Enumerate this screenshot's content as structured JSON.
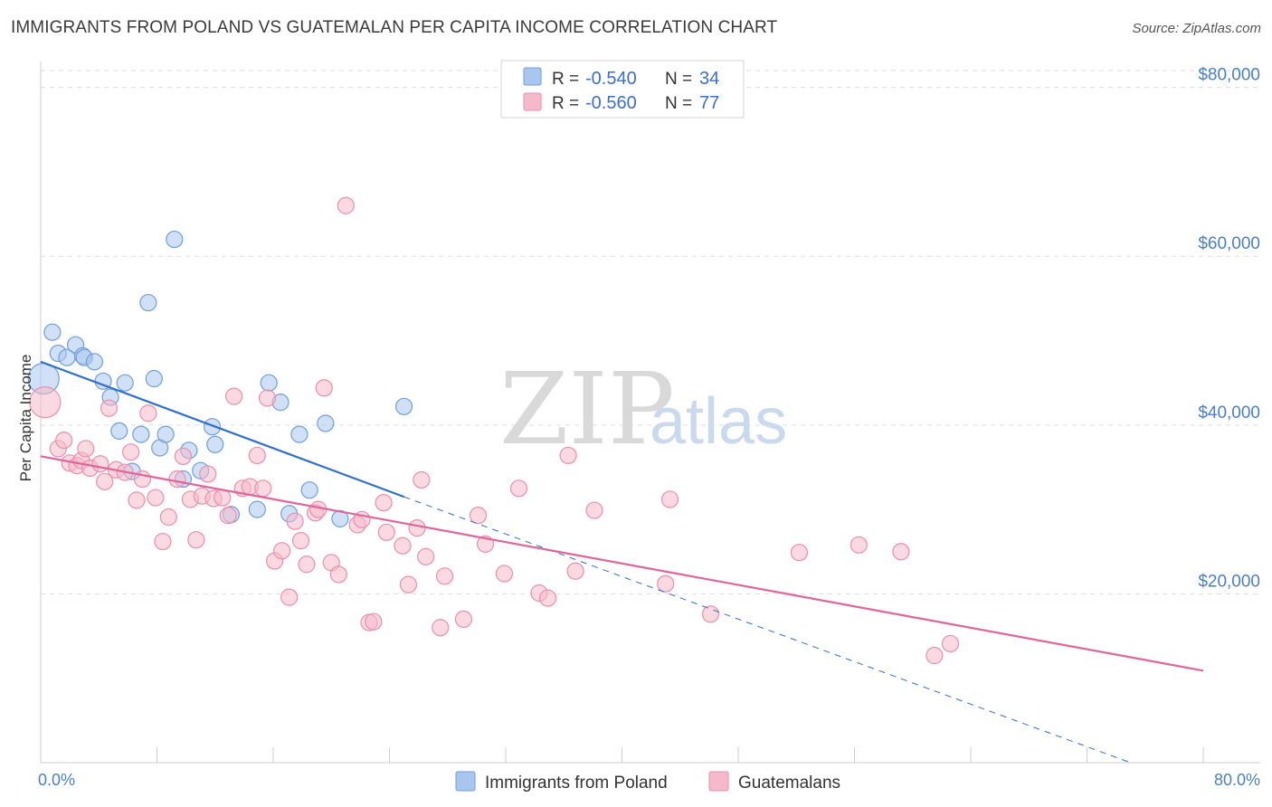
{
  "header": {
    "title": "IMMIGRANTS FROM POLAND VS GUATEMALAN PER CAPITA INCOME CORRELATION CHART",
    "source": "Source: ZipAtlas.com"
  },
  "watermark": {
    "zip": "ZIP",
    "atlas": "atlas"
  },
  "colors": {
    "blue_fill": "#a9c7ee",
    "blue_stroke": "#6f9fd9",
    "blue_line": "#2f6fcf",
    "pink_fill": "#f6b9cb",
    "pink_stroke": "#ea8fac",
    "pink_line": "#e0659a",
    "grid": "#dddddd",
    "axis_text": "#4a7fc9"
  },
  "legend": {
    "rows": [
      {
        "r_label": "R = ",
        "r_value": "-0.540",
        "n_label": "N = ",
        "n_value": "34"
      },
      {
        "r_label": "R = ",
        "r_value": "-0.560",
        "n_label": "N = ",
        "n_value": "77"
      }
    ]
  },
  "chart_data": {
    "type": "scatter",
    "title": "IMMIGRANTS FROM POLAND VS GUATEMALAN PER CAPITA INCOME CORRELATION CHART",
    "xlabel": "",
    "ylabel": "Per Capita Income",
    "xlim": [
      0,
      80
    ],
    "ylim": [
      0,
      82000
    ],
    "x_tick_labels": [
      "0.0%",
      "80.0%"
    ],
    "y_ticks": [
      20000,
      40000,
      60000,
      80000
    ],
    "y_tick_labels": [
      "$20,000",
      "$40,000",
      "$60,000",
      "$80,000"
    ],
    "legend_position": "top-center",
    "series": [
      {
        "name": "Immigrants from Poland",
        "color": "#a9c7ee",
        "r": -0.54,
        "n": 34,
        "trend": {
          "x0": 0,
          "y0": 47500,
          "x1": 25,
          "y1": 31500,
          "dash_to_x": 75,
          "dash_to_y": 0
        },
        "points": [
          {
            "x": 0.2,
            "y": 45500,
            "big": true
          },
          {
            "x": 0.8,
            "y": 51000
          },
          {
            "x": 1.2,
            "y": 48500
          },
          {
            "x": 1.8,
            "y": 48000
          },
          {
            "x": 2.4,
            "y": 49500
          },
          {
            "x": 2.9,
            "y": 48200
          },
          {
            "x": 3.0,
            "y": 48000
          },
          {
            "x": 3.7,
            "y": 47500
          },
          {
            "x": 4.3,
            "y": 45200
          },
          {
            "x": 4.8,
            "y": 43300
          },
          {
            "x": 5.4,
            "y": 39300
          },
          {
            "x": 5.8,
            "y": 45000
          },
          {
            "x": 6.3,
            "y": 34500
          },
          {
            "x": 6.9,
            "y": 38900
          },
          {
            "x": 7.4,
            "y": 54500
          },
          {
            "x": 7.8,
            "y": 45500
          },
          {
            "x": 8.2,
            "y": 37300
          },
          {
            "x": 8.6,
            "y": 38900
          },
          {
            "x": 9.2,
            "y": 62000
          },
          {
            "x": 9.8,
            "y": 33600
          },
          {
            "x": 10.2,
            "y": 37000
          },
          {
            "x": 11.0,
            "y": 34600
          },
          {
            "x": 11.8,
            "y": 39800
          },
          {
            "x": 12.0,
            "y": 37700
          },
          {
            "x": 13.1,
            "y": 29400
          },
          {
            "x": 14.9,
            "y": 30000
          },
          {
            "x": 15.7,
            "y": 45000
          },
          {
            "x": 16.5,
            "y": 42700
          },
          {
            "x": 17.1,
            "y": 29500
          },
          {
            "x": 17.8,
            "y": 38900
          },
          {
            "x": 18.5,
            "y": 32300
          },
          {
            "x": 19.6,
            "y": 40200
          },
          {
            "x": 20.6,
            "y": 28900
          },
          {
            "x": 25.0,
            "y": 42200
          }
        ]
      },
      {
        "name": "Guatemalans",
        "color": "#f6b9cb",
        "r": -0.56,
        "n": 77,
        "trend": {
          "x0": 0,
          "y0": 36300,
          "x1": 80,
          "y1": 10900
        },
        "points": [
          {
            "x": 0.3,
            "y": 42700,
            "big": true
          },
          {
            "x": 1.2,
            "y": 37200
          },
          {
            "x": 1.6,
            "y": 38200
          },
          {
            "x": 2.0,
            "y": 35500
          },
          {
            "x": 2.5,
            "y": 35200
          },
          {
            "x": 2.8,
            "y": 35800
          },
          {
            "x": 3.1,
            "y": 37200
          },
          {
            "x": 3.4,
            "y": 34900
          },
          {
            "x": 4.1,
            "y": 35400
          },
          {
            "x": 4.4,
            "y": 33300
          },
          {
            "x": 4.7,
            "y": 42000
          },
          {
            "x": 5.2,
            "y": 34700
          },
          {
            "x": 5.8,
            "y": 34400
          },
          {
            "x": 6.2,
            "y": 36800
          },
          {
            "x": 6.6,
            "y": 31100
          },
          {
            "x": 7.0,
            "y": 33600
          },
          {
            "x": 7.4,
            "y": 41400
          },
          {
            "x": 7.9,
            "y": 31400
          },
          {
            "x": 8.4,
            "y": 26200
          },
          {
            "x": 8.8,
            "y": 29100
          },
          {
            "x": 9.4,
            "y": 33600
          },
          {
            "x": 9.8,
            "y": 36300
          },
          {
            "x": 10.3,
            "y": 31200
          },
          {
            "x": 10.7,
            "y": 26400
          },
          {
            "x": 11.1,
            "y": 31600
          },
          {
            "x": 11.5,
            "y": 34200
          },
          {
            "x": 11.9,
            "y": 31300
          },
          {
            "x": 12.5,
            "y": 31400
          },
          {
            "x": 12.9,
            "y": 29300
          },
          {
            "x": 13.3,
            "y": 43400
          },
          {
            "x": 13.9,
            "y": 32500
          },
          {
            "x": 14.4,
            "y": 32700
          },
          {
            "x": 14.9,
            "y": 36400
          },
          {
            "x": 15.3,
            "y": 32500
          },
          {
            "x": 15.6,
            "y": 43200
          },
          {
            "x": 16.1,
            "y": 23900
          },
          {
            "x": 16.6,
            "y": 25100
          },
          {
            "x": 17.1,
            "y": 19600
          },
          {
            "x": 17.5,
            "y": 28600
          },
          {
            "x": 17.9,
            "y": 26300
          },
          {
            "x": 18.3,
            "y": 23500
          },
          {
            "x": 18.9,
            "y": 29600
          },
          {
            "x": 19.1,
            "y": 30000
          },
          {
            "x": 19.5,
            "y": 44400
          },
          {
            "x": 20.0,
            "y": 23700
          },
          {
            "x": 20.5,
            "y": 22300
          },
          {
            "x": 21.0,
            "y": 66000
          },
          {
            "x": 21.8,
            "y": 28200
          },
          {
            "x": 22.1,
            "y": 28800
          },
          {
            "x": 22.6,
            "y": 16600
          },
          {
            "x": 22.9,
            "y": 16700
          },
          {
            "x": 23.6,
            "y": 30800
          },
          {
            "x": 23.8,
            "y": 27300
          },
          {
            "x": 24.9,
            "y": 25700
          },
          {
            "x": 25.3,
            "y": 21100
          },
          {
            "x": 25.9,
            "y": 27800
          },
          {
            "x": 26.2,
            "y": 33500
          },
          {
            "x": 26.5,
            "y": 24400
          },
          {
            "x": 27.5,
            "y": 16000
          },
          {
            "x": 27.8,
            "y": 22100
          },
          {
            "x": 29.1,
            "y": 17000
          },
          {
            "x": 30.1,
            "y": 29300
          },
          {
            "x": 30.6,
            "y": 25900
          },
          {
            "x": 31.9,
            "y": 22400
          },
          {
            "x": 32.9,
            "y": 32500
          },
          {
            "x": 34.3,
            "y": 20100
          },
          {
            "x": 34.9,
            "y": 19500
          },
          {
            "x": 36.3,
            "y": 36400
          },
          {
            "x": 36.8,
            "y": 22700
          },
          {
            "x": 38.1,
            "y": 29900
          },
          {
            "x": 43.0,
            "y": 21200
          },
          {
            "x": 43.3,
            "y": 31200
          },
          {
            "x": 46.1,
            "y": 17600
          },
          {
            "x": 52.2,
            "y": 24900
          },
          {
            "x": 56.3,
            "y": 25800
          },
          {
            "x": 59.2,
            "y": 25000
          },
          {
            "x": 61.5,
            "y": 12700
          },
          {
            "x": 62.6,
            "y": 14100
          }
        ]
      }
    ]
  }
}
